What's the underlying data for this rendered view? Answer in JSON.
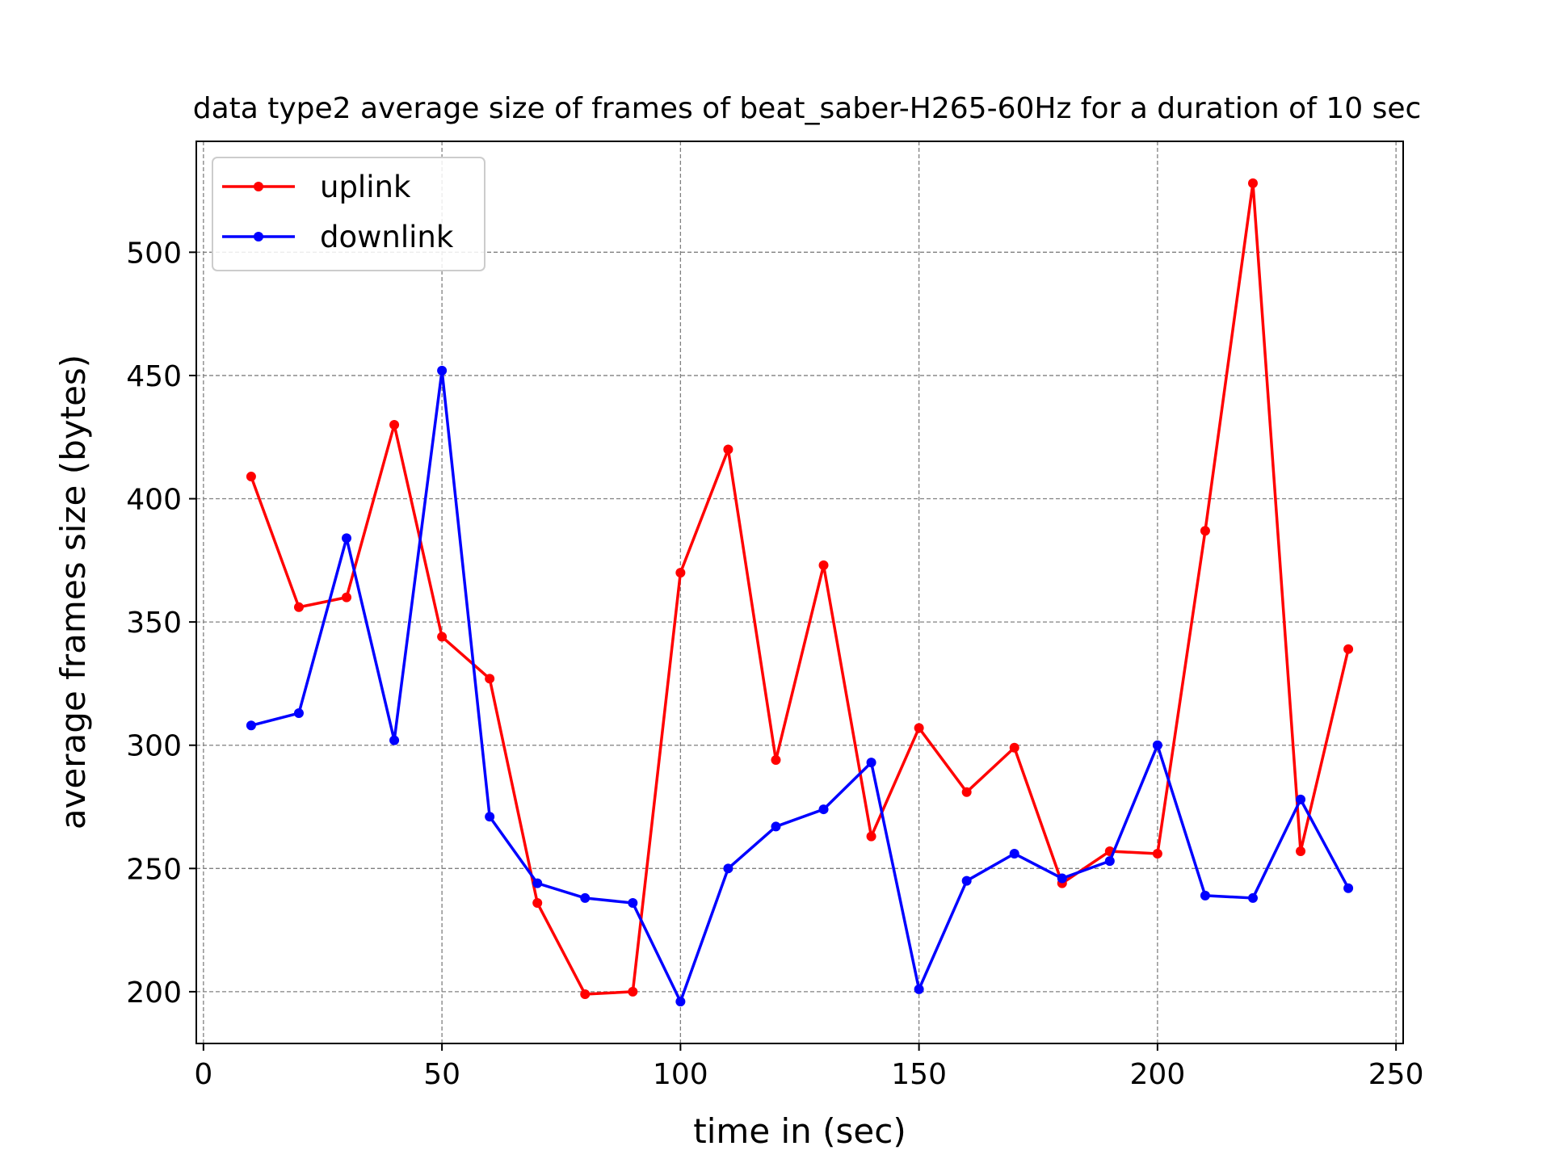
{
  "chart_data": {
    "type": "line",
    "title": "data type2 average size of frames of beat_saber-H265-60Hz for a duration of 10 sec",
    "xlabel": "time in (sec)",
    "ylabel": "average frames size (bytes)",
    "xlim": [
      -1.5,
      251.5
    ],
    "ylim": [
      179,
      545
    ],
    "xticks": [
      0,
      50,
      100,
      150,
      200,
      250
    ],
    "yticks": [
      200,
      250,
      300,
      350,
      400,
      450,
      500
    ],
    "grid": true,
    "legend_position": "upper-left",
    "x": [
      10,
      20,
      30,
      40,
      50,
      60,
      70,
      80,
      90,
      100,
      110,
      120,
      130,
      140,
      150,
      160,
      170,
      180,
      190,
      200,
      210,
      220,
      230,
      240
    ],
    "series": [
      {
        "name": "uplink",
        "color": "#ff0000",
        "values": [
          409,
          356,
          360,
          430,
          344,
          327,
          236,
          199,
          200,
          370,
          420,
          294,
          373,
          263,
          307,
          281,
          299,
          244,
          257,
          256,
          387,
          528,
          257,
          339
        ]
      },
      {
        "name": "downlink",
        "color": "#0000ff",
        "values": [
          308,
          313,
          384,
          302,
          452,
          271,
          244,
          238,
          236,
          196,
          250,
          267,
          274,
          293,
          201,
          245,
          256,
          246,
          253,
          300,
          239,
          238,
          278,
          242
        ]
      }
    ]
  }
}
